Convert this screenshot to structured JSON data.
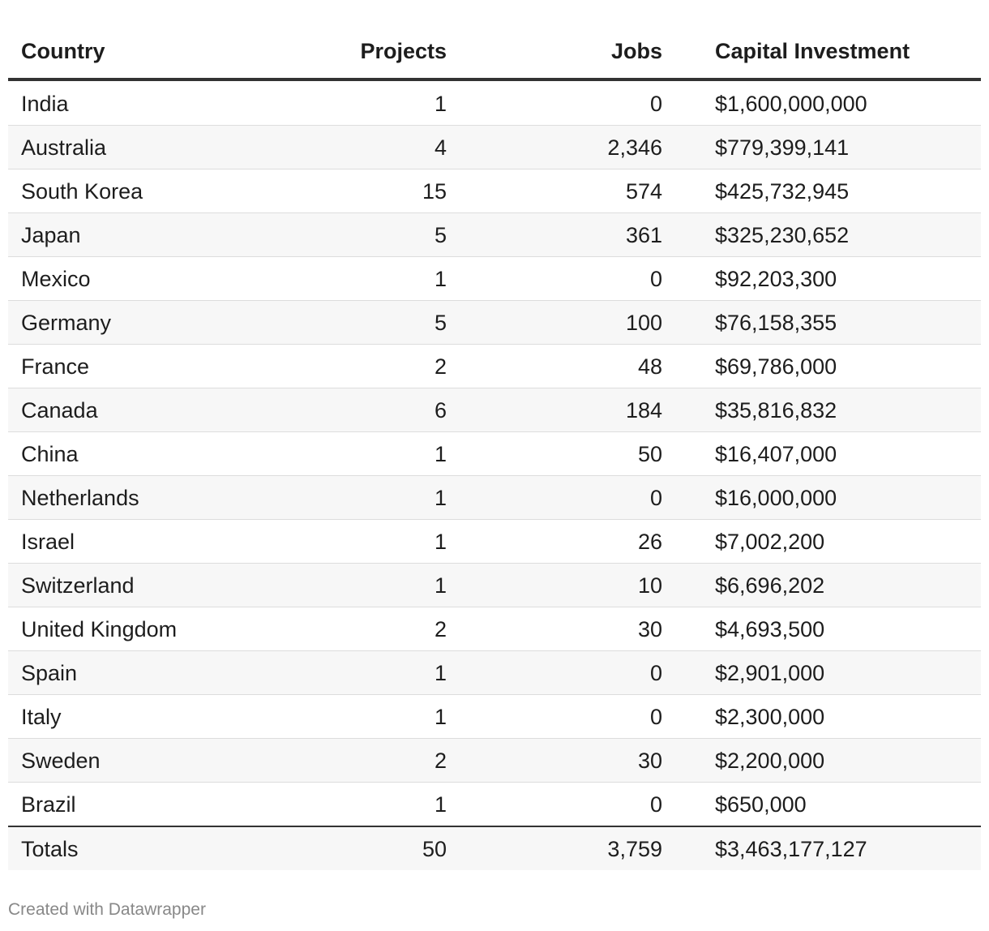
{
  "table": {
    "header": [
      "Country",
      "Projects",
      "Jobs",
      "Capital Investment"
    ],
    "rows": [
      [
        "India",
        "1",
        "0",
        "$1,600,000,000"
      ],
      [
        "Australia",
        "4",
        "2,346",
        "$779,399,141"
      ],
      [
        "South Korea",
        "15",
        "574",
        "$425,732,945"
      ],
      [
        "Japan",
        "5",
        "361",
        "$325,230,652"
      ],
      [
        "Mexico",
        "1",
        "0",
        "$92,203,300"
      ],
      [
        "Germany",
        "5",
        "100",
        "$76,158,355"
      ],
      [
        "France",
        "2",
        "48",
        "$69,786,000"
      ],
      [
        "Canada",
        "6",
        "184",
        "$35,816,832"
      ],
      [
        "China",
        "1",
        "50",
        "$16,407,000"
      ],
      [
        "Netherlands",
        "1",
        "0",
        "$16,000,000"
      ],
      [
        "Israel",
        "1",
        "26",
        "$7,002,200"
      ],
      [
        "Switzerland",
        "1",
        "10",
        "$6,696,202"
      ],
      [
        "United Kingdom",
        "2",
        "30",
        "$4,693,500"
      ],
      [
        "Spain",
        "1",
        "0",
        "$2,901,000"
      ],
      [
        "Italy",
        "1",
        "0",
        "$2,300,000"
      ],
      [
        "Sweden",
        "2",
        "30",
        "$2,200,000"
      ],
      [
        "Brazil",
        "1",
        "0",
        "$650,000"
      ]
    ],
    "totals": [
      "Totals",
      "50",
      "3,759",
      "$3,463,177,127"
    ]
  },
  "footer": "Created with Datawrapper"
}
